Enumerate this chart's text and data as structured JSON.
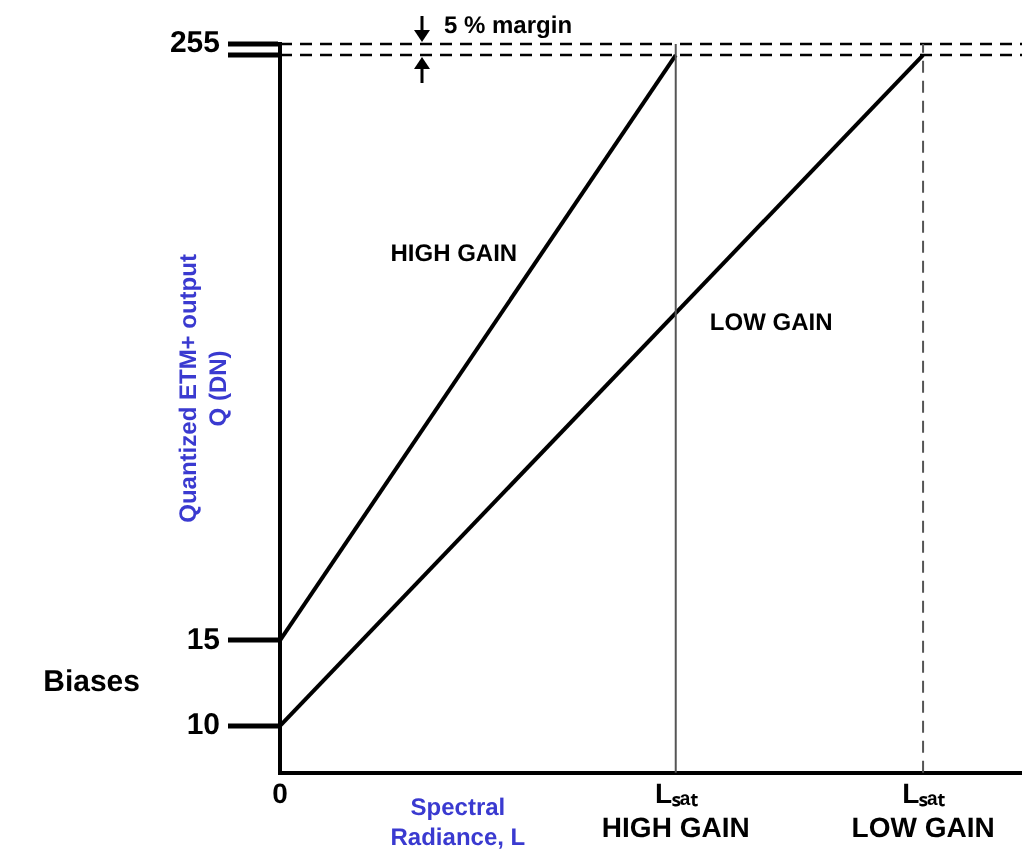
{
  "chart_data": {
    "type": "line",
    "xlabel": "Spectral\nRadiance, L",
    "ylabel": "Quantized ETM+ output\nQ (DN)",
    "categories": [
      "0",
      null,
      null,
      null,
      null,
      null,
      null,
      null,
      "Lₛₐₜ\nHIGH GAIN",
      null,
      null,
      null,
      null,
      "Lₛₐₜ\nLOW GAIN",
      null,
      null
    ],
    "log": true,
    "ylim": [
      8,
      255
    ],
    "yticks": [
      10,
      15,
      {
        "value": 242,
        "label": null
      },
      255
    ],
    "series": [
      {
        "name": "HIGH GAIN",
        "color": "#000000",
        "values": [
          15,
          null,
          null,
          null,
          null,
          null,
          null,
          null,
          242,
          null,
          null,
          null,
          null,
          null,
          null,
          null
        ]
      },
      {
        "name": "LOW GAIN",
        "color": "#000000",
        "values": [
          10,
          null,
          null,
          null,
          null,
          null,
          null,
          null,
          null,
          null,
          null,
          null,
          null,
          242,
          null,
          null
        ]
      }
    ],
    "ref_lines": [
      {
        "axis": "y",
        "value": 255,
        "color": "#000000",
        "line_style": "dashed"
      },
      {
        "axis": "y",
        "value": 242,
        "color": "#000000",
        "line_style": "dashed"
      },
      {
        "axis": "x",
        "value": "Lₛₐₜ\nHIGH GAIN",
        "color": "#555555",
        "line_style": "solid"
      },
      {
        "axis": "x",
        "value": "Lₛₐₜ\nLOW GAIN",
        "color": "#555555",
        "line_style": "dashed"
      }
    ],
    "annotations": [
      "5 % margin",
      "Biases"
    ],
    "grid": false,
    "legend": false,
    "marker": "none",
    "line_style": "solid"
  }
}
